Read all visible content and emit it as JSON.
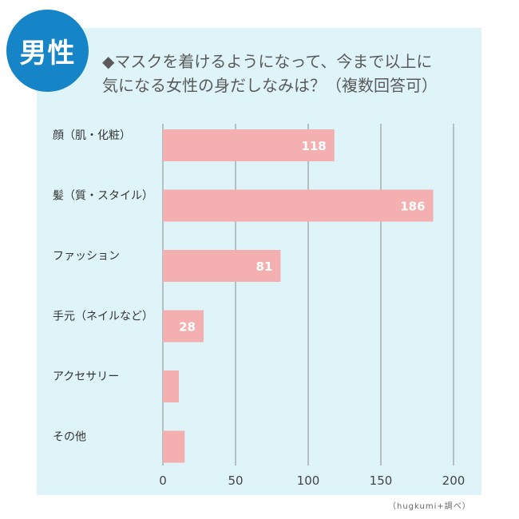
{
  "badge": {
    "label": "男性"
  },
  "title": {
    "line1": "◆マスクを着けるようになって、今まで以上に",
    "line2": "気になる女性の身だしなみは？（複数回答可）"
  },
  "credit": "（hugkumi+調べ）",
  "colors": {
    "background_panel": "#dff4f9",
    "bar": "#f4b0b0",
    "badge": "#1585c7",
    "label_text": "#ffffff",
    "axis_text": "#444444"
  },
  "chart_data": {
    "type": "bar",
    "orientation": "horizontal",
    "categories": [
      "顔（肌・化粧）",
      "髪（質・スタイル）",
      "ファッション",
      "手元（ネイルなど）",
      "アクセサリー",
      "その他"
    ],
    "values": [
      118,
      186,
      81,
      28,
      11,
      15
    ],
    "data_labels": [
      "118",
      "186",
      "81",
      "28",
      "",
      ""
    ],
    "xlim": [
      0,
      200
    ],
    "xticks": [
      0,
      50,
      100,
      150,
      200
    ],
    "xtick_labels": [
      "0",
      "50",
      "100",
      "150",
      "200"
    ],
    "grid": true
  }
}
